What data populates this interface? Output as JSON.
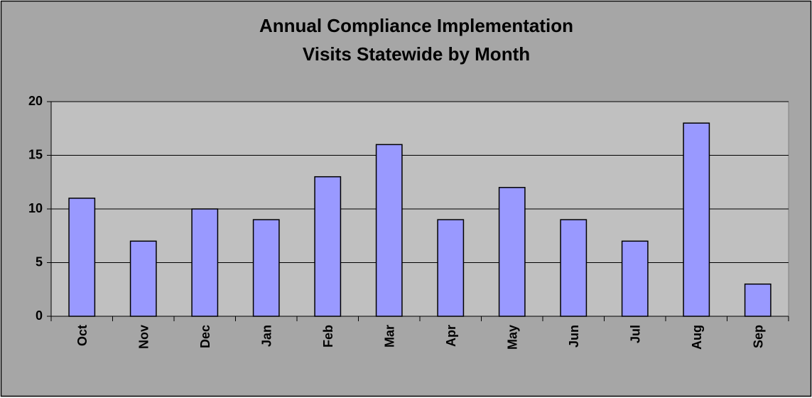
{
  "chart_data": {
    "type": "bar",
    "title": [
      "Annual Compliance Implementation",
      "Visits Statewide by Month"
    ],
    "categories": [
      "Oct",
      "Nov",
      "Dec",
      "Jan",
      "Feb",
      "Mar",
      "Apr",
      "May",
      "Jun",
      "Jul",
      "Aug",
      "Sep"
    ],
    "values": [
      11,
      7,
      10,
      9,
      13,
      16,
      9,
      12,
      9,
      7,
      18,
      3
    ],
    "color": "#9999ff",
    "ylim": [
      0,
      20
    ],
    "yticks": [
      0,
      5,
      10,
      15,
      20
    ],
    "grid": true
  }
}
